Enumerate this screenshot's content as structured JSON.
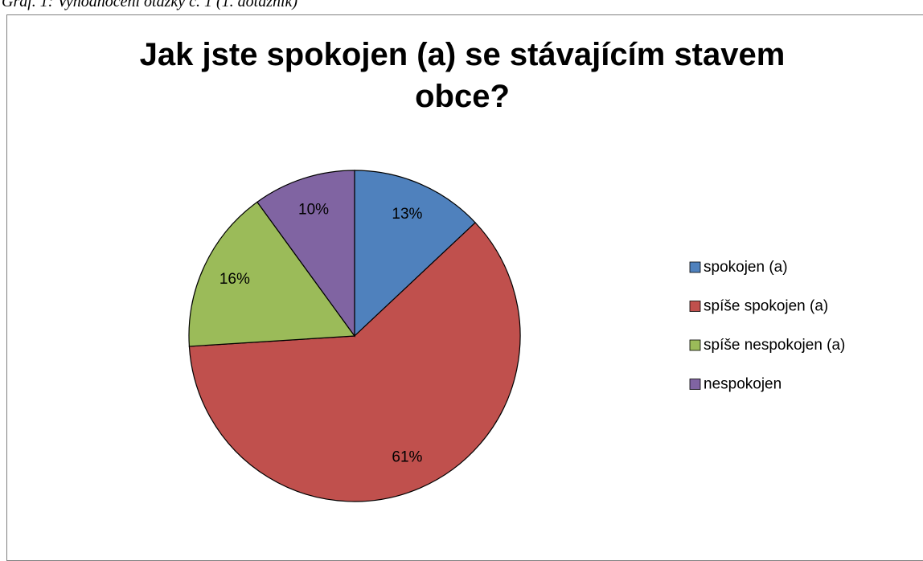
{
  "caption": "Graf. 1: Vyhodnocení otázky č. 1 (1. dotazník)",
  "chart_data": {
    "type": "pie",
    "title": "Jak jste spokojen (a) se stávajícím stavem obce?",
    "categories": [
      "spokojen (a)",
      "spíše spokojen (a)",
      "spíše nespokojen (a)",
      "nespokojen"
    ],
    "values": [
      13,
      61,
      16,
      10
    ],
    "value_labels": [
      "13%",
      "61%",
      "16%",
      "10%"
    ],
    "colors": [
      "#4f81bd",
      "#c0504d",
      "#9bbb59",
      "#8064a2"
    ],
    "legend": "right"
  }
}
